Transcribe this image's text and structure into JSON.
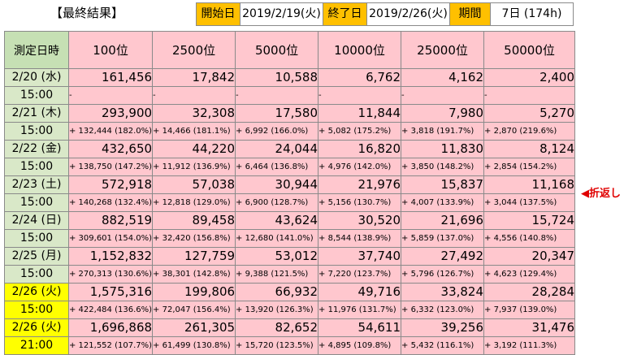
{
  "header": {
    "title": "【最終結果】",
    "start_label": "開始日",
    "start_value": "2019/2/19(火)",
    "end_label": "終了日",
    "end_value": "2019/2/26(火)",
    "period_label": "期間",
    "period_value": "7日 (174h)"
  },
  "table": {
    "corner": "測定日時",
    "columns": [
      "100位",
      "2500位",
      "5000位",
      "10000位",
      "25000位",
      "50000位"
    ],
    "rows": [
      {
        "date": "2/20 (水)",
        "time": "15:00",
        "highlight": false,
        "values": [
          "161,456",
          "17,842",
          "10,588",
          "6,762",
          "4,162",
          "2,400"
        ],
        "deltas": [
          "-",
          "-",
          "-",
          "-",
          "-",
          "-"
        ]
      },
      {
        "date": "2/21 (木)",
        "time": "15:00",
        "highlight": false,
        "values": [
          "293,900",
          "32,308",
          "17,580",
          "11,844",
          "7,980",
          "5,270"
        ],
        "deltas": [
          "+ 132,444 (182.0%)",
          "+ 14,466 (181.1%)",
          "+ 6,992 (166.0%)",
          "+ 5,082 (175.2%)",
          "+ 3,818 (191.7%)",
          "+ 2,870 (219.6%)"
        ]
      },
      {
        "date": "2/22 (金)",
        "time": "15:00",
        "highlight": false,
        "values": [
          "432,650",
          "44,220",
          "24,044",
          "16,820",
          "11,830",
          "8,124"
        ],
        "deltas": [
          "+ 138,750 (147.2%)",
          "+ 11,912 (136.9%)",
          "+ 6,464 (136.8%)",
          "+ 4,976 (142.0%)",
          "+ 3,850 (148.2%)",
          "+ 2,854 (154.2%)"
        ]
      },
      {
        "date": "2/23 (土)",
        "time": "15:00",
        "highlight": false,
        "values": [
          "572,918",
          "57,038",
          "30,944",
          "21,976",
          "15,837",
          "11,168"
        ],
        "deltas": [
          "+ 140,268 (132.4%)",
          "+ 12,818 (129.0%)",
          "+ 6,900 (128.7%)",
          "+ 5,156 (130.7%)",
          "+ 4,007 (133.9%)",
          "+ 3,044 (137.5%)"
        ]
      },
      {
        "date": "2/24 (日)",
        "time": "15:00",
        "highlight": false,
        "values": [
          "882,519",
          "89,458",
          "43,624",
          "30,520",
          "21,696",
          "15,724"
        ],
        "deltas": [
          "+ 309,601 (154.0%)",
          "+ 32,420 (156.8%)",
          "+ 12,680 (141.0%)",
          "+ 8,544 (138.9%)",
          "+ 5,859 (137.0%)",
          "+ 4,556 (140.8%)"
        ]
      },
      {
        "date": "2/25 (月)",
        "time": "15:00",
        "highlight": false,
        "values": [
          "1,152,832",
          "127,759",
          "53,012",
          "37,740",
          "27,492",
          "20,347"
        ],
        "deltas": [
          "+ 270,313 (130.6%)",
          "+ 38,301 (142.8%)",
          "+ 9,388 (121.5%)",
          "+ 7,220 (123.7%)",
          "+ 5,796 (126.7%)",
          "+ 4,623 (129.4%)"
        ]
      },
      {
        "date": "2/26 (火)",
        "time": "15:00",
        "highlight": true,
        "values": [
          "1,575,316",
          "199,806",
          "66,932",
          "49,716",
          "33,824",
          "28,284"
        ],
        "deltas": [
          "+ 422,484 (136.6%)",
          "+ 72,047 (156.4%)",
          "+ 13,920 (126.3%)",
          "+ 11,976 (131.7%)",
          "+ 6,332 (123.0%)",
          "+ 7,937 (139.0%)"
        ]
      },
      {
        "date": "2/26 (火)",
        "time": "21:00",
        "highlight": true,
        "values": [
          "1,696,868",
          "261,305",
          "82,652",
          "54,611",
          "39,256",
          "31,476"
        ],
        "deltas": [
          "+ 121,552 (107.7%)",
          "+ 61,499 (130.8%)",
          "+ 15,720 (123.5%)",
          "+ 4,895 (109.8%)",
          "+ 5,432 (116.1%)",
          "+ 3,192 (111.3%)"
        ]
      }
    ]
  },
  "note": "◀折返し"
}
